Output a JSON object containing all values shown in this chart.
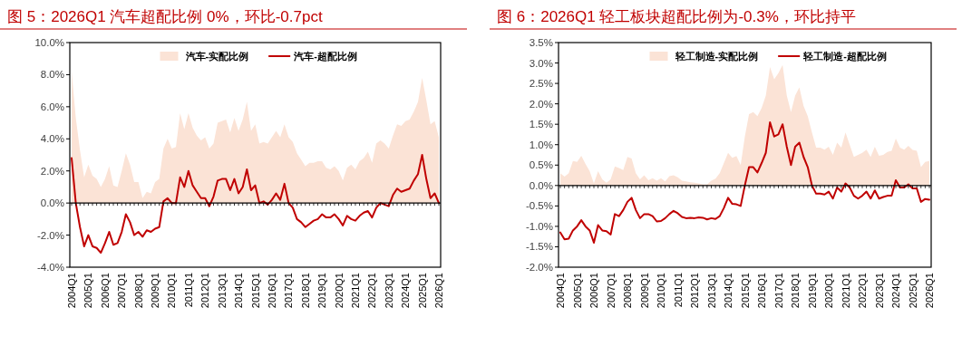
{
  "chart_data": [
    {
      "type": "area",
      "title": "图 5：2026Q1 汽车超配比例 0%，环比-0.7pct",
      "categories": [
        "2004Q1",
        null,
        null,
        null,
        "2005Q1",
        null,
        null,
        null,
        "2006Q1",
        null,
        null,
        null,
        "2007Q1",
        null,
        null,
        null,
        "2008Q1",
        null,
        null,
        null,
        "2009Q1",
        null,
        null,
        null,
        "2010Q1",
        null,
        null,
        null,
        "2011Q1",
        null,
        null,
        null,
        "2012Q1",
        null,
        null,
        null,
        "2013Q1",
        null,
        null,
        null,
        "2014Q1",
        null,
        null,
        null,
        "2015Q1",
        null,
        null,
        null,
        "2016Q1",
        null,
        null,
        null,
        "2017Q1",
        null,
        null,
        null,
        "2018Q1",
        null,
        null,
        null,
        "2019Q1",
        null,
        null,
        null,
        "2020Q1",
        null,
        null,
        null,
        "2021Q1",
        null,
        null,
        null,
        "2022Q1",
        null,
        null,
        null,
        "2023Q1",
        null,
        null,
        null,
        "2024Q1",
        null,
        null,
        null,
        "2025Q1",
        null,
        null,
        null,
        "2026Q1"
      ],
      "series": [
        {
          "name": "汽车-实配比例",
          "color": "#fbe3d6",
          "values": [
            8.2,
            5.3,
            3.3,
            1.6,
            2.4,
            1.7,
            1.5,
            1.0,
            1.5,
            2.3,
            1.1,
            1.0,
            2.0,
            3.1,
            2.4,
            1.3,
            1.3,
            0.3,
            0.7,
            0.6,
            1.3,
            1.5,
            3.4,
            4.0,
            3.4,
            3.5,
            5.6,
            4.6,
            5.6,
            4.7,
            4.2,
            3.9,
            4.1,
            3.4,
            3.7,
            5.0,
            5.1,
            5.2,
            4.4,
            5.3,
            4.5,
            5.2,
            6.3,
            4.5,
            4.9,
            3.7,
            3.8,
            3.7,
            4.1,
            4.5,
            4.1,
            4.9,
            4.1,
            3.8,
            3.1,
            2.7,
            2.3,
            2.5,
            2.5,
            2.6,
            2.6,
            2.2,
            2.1,
            2.3,
            2.0,
            1.4,
            2.2,
            2.4,
            2.1,
            2.6,
            2.8,
            3.2,
            2.5,
            3.7,
            3.9,
            3.7,
            3.4,
            4.2,
            4.9,
            4.8,
            5.1,
            5.2,
            5.7,
            6.3,
            7.8,
            6.4,
            4.9,
            5.1,
            4.1
          ]
        },
        {
          "name": "汽车-超配比例",
          "type": "line",
          "color": "#c00000",
          "values": [
            2.8,
            0.0,
            -1.5,
            -2.7,
            -2.0,
            -2.7,
            -2.8,
            -3.1,
            -2.5,
            -1.8,
            -2.6,
            -2.5,
            -1.8,
            -0.7,
            -1.2,
            -2.0,
            -1.8,
            -2.1,
            -1.7,
            -1.8,
            -1.6,
            -1.5,
            0.1,
            0.3,
            0.0,
            0.0,
            1.6,
            1.0,
            2.0,
            1.1,
            0.7,
            0.3,
            0.3,
            -0.2,
            0.4,
            1.4,
            1.5,
            1.5,
            0.8,
            1.5,
            0.6,
            1.0,
            2.1,
            0.8,
            1.1,
            0.0,
            0.1,
            -0.1,
            0.2,
            0.6,
            0.2,
            1.2,
            0.0,
            -0.3,
            -1.0,
            -1.2,
            -1.5,
            -1.3,
            -1.1,
            -1.0,
            -0.7,
            -0.9,
            -0.9,
            -0.7,
            -1.0,
            -1.4,
            -0.8,
            -1.0,
            -1.1,
            -0.8,
            -0.6,
            -0.5,
            -0.9,
            -0.3,
            0.0,
            -0.1,
            -0.2,
            0.5,
            0.9,
            0.7,
            0.8,
            0.9,
            1.4,
            1.8,
            3.0,
            1.5,
            0.3,
            0.6,
            0.0
          ]
        }
      ],
      "ylim": [
        -4,
        10
      ],
      "yticks": [
        {
          "value": -4,
          "label": "-4.0%"
        },
        {
          "value": -2,
          "label": "-2.0%"
        },
        {
          "value": 0,
          "label": "0.0%"
        },
        {
          "value": 2,
          "label": "2.0%"
        },
        {
          "value": 4,
          "label": "4.0%"
        },
        {
          "value": 6,
          "label": "6.0%"
        },
        {
          "value": 8,
          "label": "8.0%"
        },
        {
          "value": 10,
          "label": "10.0%"
        }
      ],
      "legend": "top"
    },
    {
      "type": "area",
      "title": "图 6：2026Q1 轻工板块超配比例为-0.3%，环比持平",
      "categories": [
        "2004Q1",
        null,
        null,
        null,
        "2005Q1",
        null,
        null,
        null,
        "2006Q1",
        null,
        null,
        null,
        "2007Q1",
        null,
        null,
        null,
        "2008Q1",
        null,
        null,
        null,
        "2009Q1",
        null,
        null,
        null,
        "2010Q1",
        null,
        null,
        null,
        "2011Q1",
        null,
        null,
        null,
        "2012Q1",
        null,
        null,
        null,
        "2013Q1",
        null,
        null,
        null,
        "2014Q1",
        null,
        null,
        null,
        "2015Q1",
        null,
        null,
        null,
        "2016Q1",
        null,
        null,
        null,
        "2017Q1",
        null,
        null,
        null,
        "2018Q1",
        null,
        null,
        null,
        "2019Q1",
        null,
        null,
        null,
        "2020Q1",
        null,
        null,
        null,
        "2021Q1",
        null,
        null,
        null,
        "2022Q1",
        null,
        null,
        null,
        "2023Q1",
        null,
        null,
        null,
        "2024Q1",
        null,
        null,
        null,
        "2025Q1",
        null,
        null,
        null,
        "2026Q1"
      ],
      "series": [
        {
          "name": "轻工制造-实配比例",
          "color": "#fbe3d6",
          "values": [
            0.3,
            0.22,
            0.3,
            0.6,
            0.58,
            0.73,
            0.53,
            0.35,
            0.05,
            0.35,
            0.15,
            0.07,
            0.15,
            0.47,
            0.43,
            0.38,
            0.7,
            0.66,
            0.3,
            0.15,
            0.25,
            0.13,
            0.18,
            0.12,
            0.18,
            0.1,
            0.23,
            0.25,
            0.2,
            0.12,
            0.1,
            0.08,
            0.07,
            0.05,
            0.03,
            0.03,
            0.12,
            0.17,
            0.3,
            0.55,
            0.8,
            0.68,
            0.72,
            0.5,
            1.2,
            1.75,
            1.8,
            1.7,
            1.9,
            2.2,
            2.9,
            2.6,
            2.75,
            2.95,
            2.2,
            1.8,
            2.2,
            2.4,
            1.95,
            1.7,
            1.3,
            0.93,
            0.93,
            0.88,
            0.95,
            0.75,
            1.05,
            0.93,
            1.3,
            1.0,
            0.7,
            0.75,
            0.8,
            0.88,
            0.7,
            0.95,
            0.73,
            0.75,
            0.82,
            0.85,
            1.15,
            0.93,
            0.88,
            0.97,
            0.87,
            0.85,
            0.45,
            0.58,
            0.6
          ]
        },
        {
          "name": "轻工制造-超配比例",
          "type": "line",
          "color": "#c00000",
          "values": [
            -1.15,
            -1.32,
            -1.3,
            -1.1,
            -1.0,
            -0.85,
            -1.0,
            -1.1,
            -1.4,
            -0.97,
            -1.1,
            -1.12,
            -1.2,
            -0.7,
            -0.75,
            -0.6,
            -0.4,
            -0.3,
            -0.6,
            -0.8,
            -0.7,
            -0.7,
            -0.75,
            -0.88,
            -0.87,
            -0.8,
            -0.7,
            -0.62,
            -0.68,
            -0.77,
            -0.8,
            -0.79,
            -0.8,
            -0.78,
            -0.79,
            -0.83,
            -0.8,
            -0.82,
            -0.75,
            -0.55,
            -0.3,
            -0.45,
            -0.46,
            -0.5,
            0.0,
            0.45,
            0.45,
            0.32,
            0.55,
            0.8,
            1.55,
            1.2,
            1.25,
            1.5,
            0.95,
            0.5,
            0.95,
            1.05,
            0.7,
            0.45,
            0.0,
            -0.2,
            -0.2,
            -0.22,
            -0.15,
            -0.32,
            -0.05,
            -0.15,
            0.05,
            -0.05,
            -0.25,
            -0.32,
            -0.25,
            -0.15,
            -0.32,
            -0.12,
            -0.32,
            -0.28,
            -0.25,
            -0.25,
            0.13,
            -0.05,
            -0.05,
            0.03,
            -0.07,
            -0.07,
            -0.4,
            -0.33,
            -0.35
          ]
        }
      ],
      "ylim": [
        -2,
        3.5
      ],
      "yticks": [
        {
          "value": -2,
          "label": "-2.0%"
        },
        {
          "value": -1.5,
          "label": "-1.5%"
        },
        {
          "value": -1,
          "label": "-1.0%"
        },
        {
          "value": -0.5,
          "label": "-0.5%"
        },
        {
          "value": 0,
          "label": "0.0%"
        },
        {
          "value": 0.5,
          "label": "0.5%"
        },
        {
          "value": 1,
          "label": "1.0%"
        },
        {
          "value": 1.5,
          "label": "1.5%"
        },
        {
          "value": 2,
          "label": "2.0%"
        },
        {
          "value": 2.5,
          "label": "2.5%"
        },
        {
          "value": 3,
          "label": "3.0%"
        },
        {
          "value": 3.5,
          "label": "3.5%"
        }
      ],
      "legend": "top"
    }
  ]
}
